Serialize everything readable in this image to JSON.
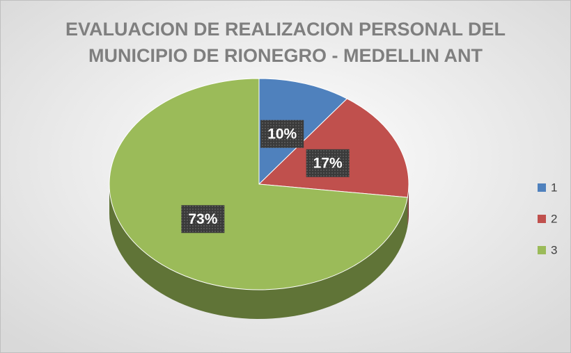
{
  "chart_data": {
    "type": "pie",
    "title": [
      "EVALUACION DE REALIZACION PERSONAL  DEL",
      "MUNICIPIO DE RIONEGRO - MEDELLIN ANT"
    ],
    "categories": [
      "1",
      "2",
      "3"
    ],
    "values": [
      10,
      17,
      73
    ],
    "value_labels": [
      "10%",
      "17%",
      "73%"
    ],
    "colors": [
      "#4f81bd",
      "#c0504d",
      "#9bbb59"
    ],
    "legend": "right"
  }
}
